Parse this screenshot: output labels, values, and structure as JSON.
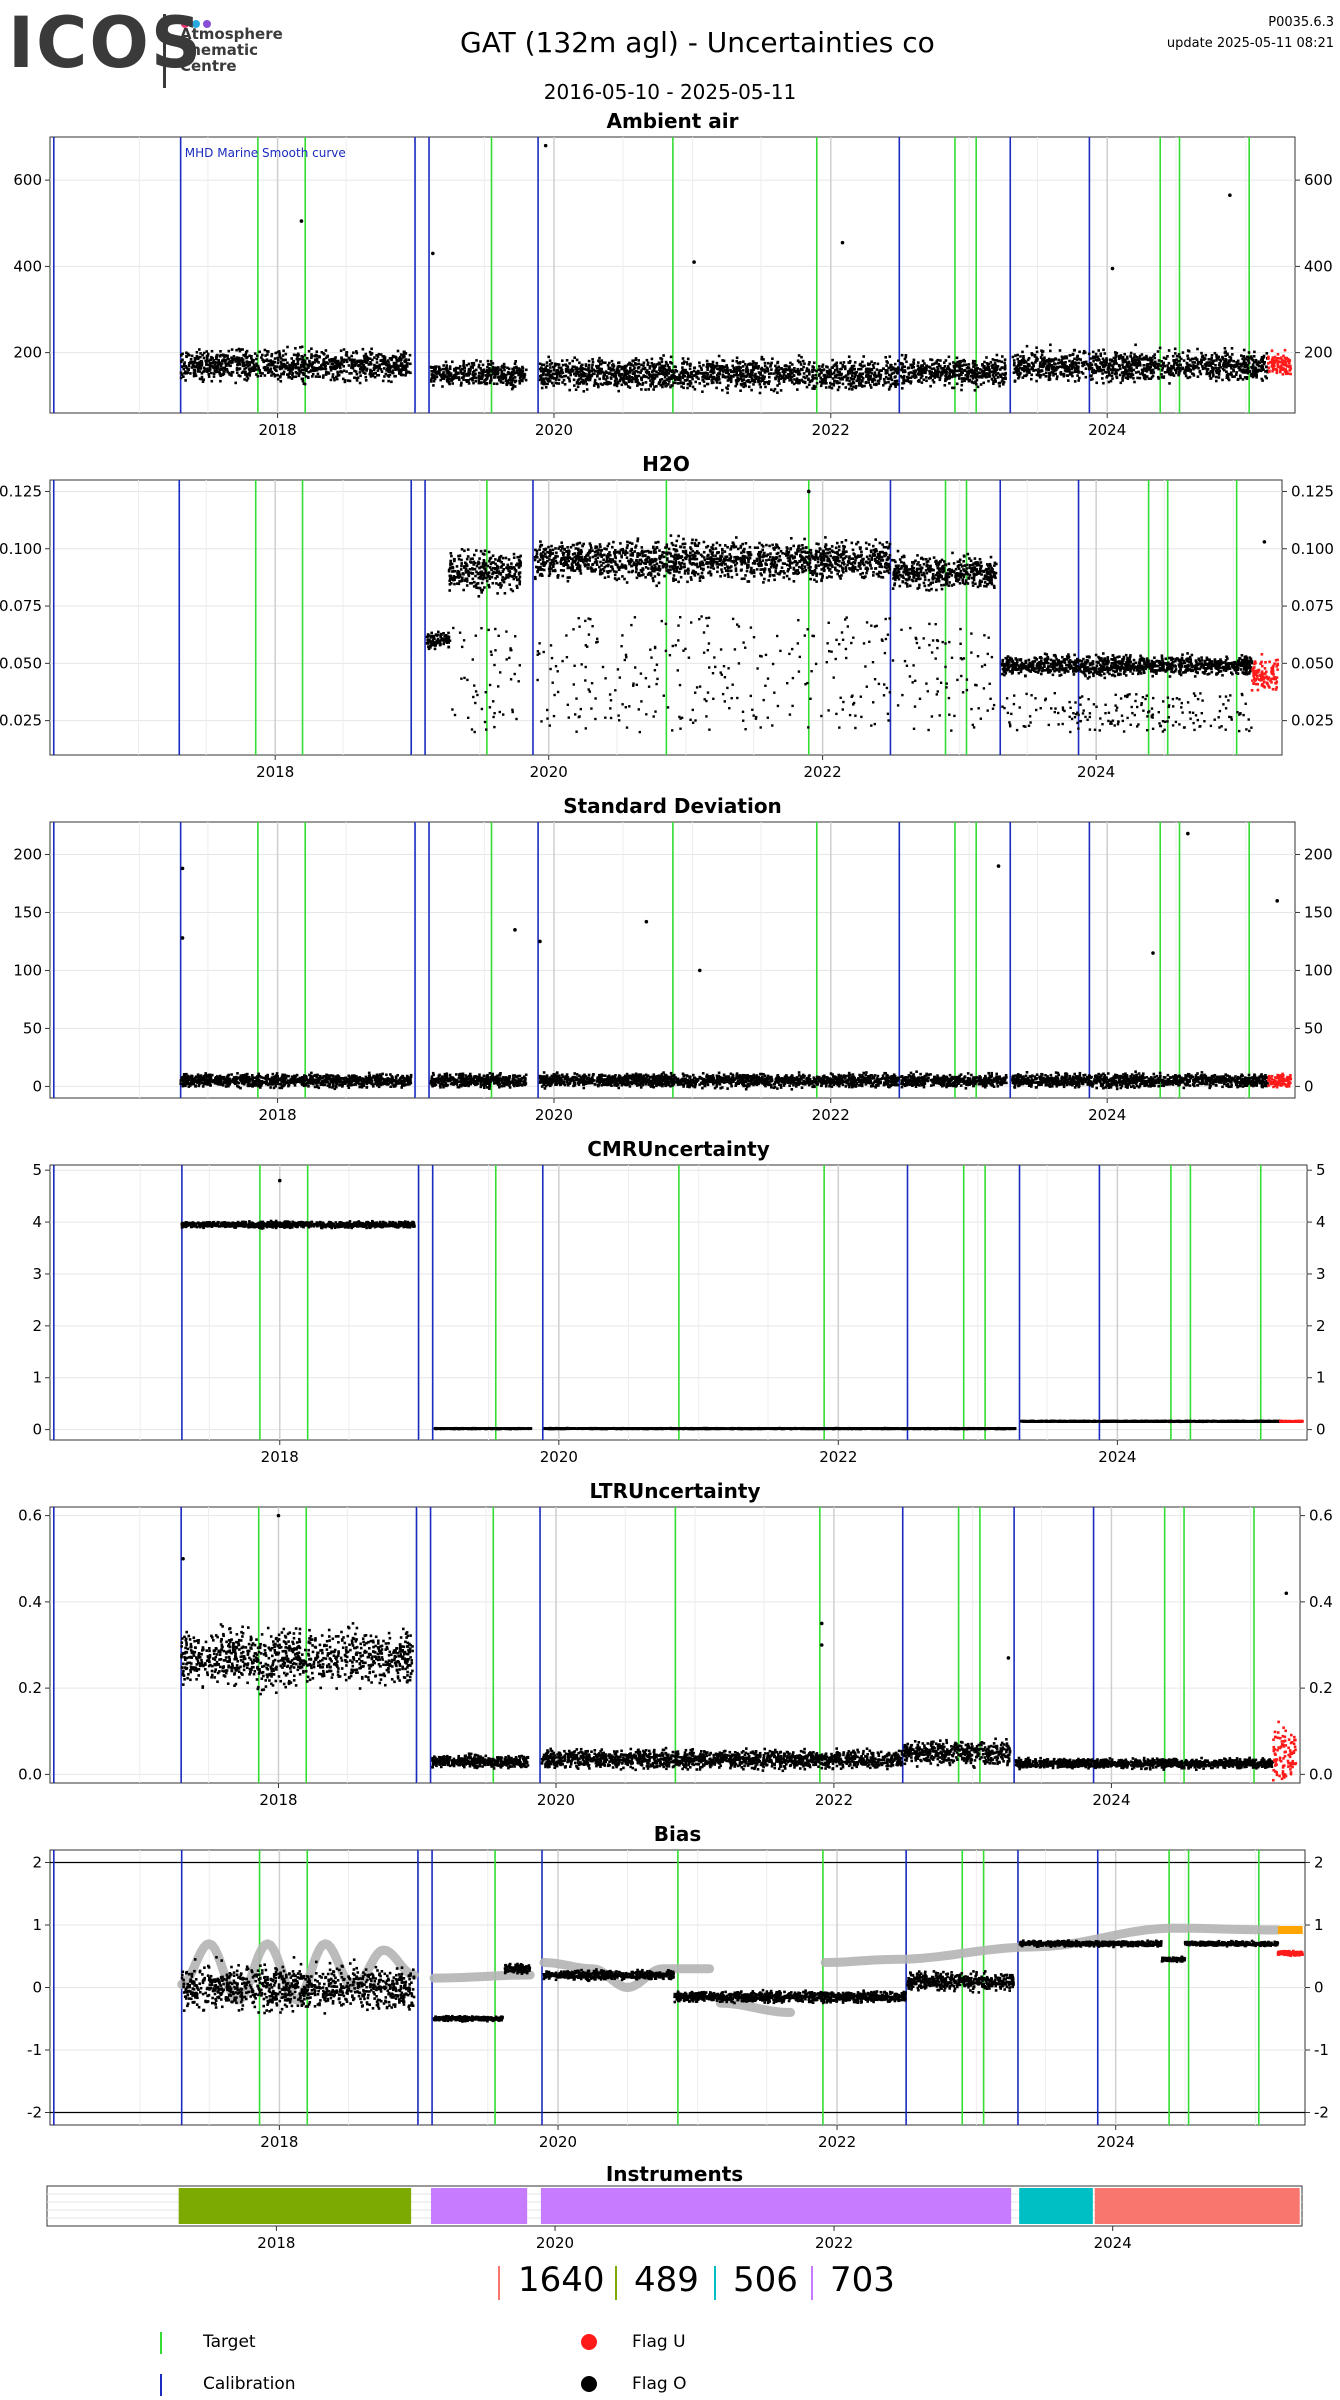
{
  "header": {
    "logo_text": "ICOS",
    "logo_sub": [
      "Atmosphere",
      "Thematic",
      "Centre"
    ],
    "title": "GAT  (132m agl) - Uncertainties co",
    "date_range": "2016-05-10 - 2025-05-11",
    "version": "P0035.6.3",
    "update": "update  2025-05-11 08:21"
  },
  "colors": {
    "target": "#33dd33",
    "calibration": "#1a2bbf",
    "flag_u": "#ff1a1a",
    "flag_o": "#000000",
    "smooth": "#b4b4b4",
    "orange": "#ffa500"
  },
  "icons": {
    "logo_dots": [
      "#e8336e",
      "#2aa9e0",
      "#8a4fd8"
    ]
  },
  "chart_data": [
    {
      "type": "scatter",
      "title": "Ambient air",
      "annotation": "MHD Marine Smooth curve",
      "xlim": [
        "2016-05-10",
        "2025-05-11"
      ],
      "xticks": [
        "2018",
        "2020",
        "2022",
        "2024"
      ],
      "ylim": [
        60,
        700
      ],
      "yticks": [
        200,
        400,
        600
      ],
      "segments": [
        {
          "start": "2017-04-20",
          "end": "2018-12-20",
          "mean": 170,
          "spread": 50
        },
        {
          "start": "2019-02-10",
          "end": "2019-10-20",
          "mean": 150,
          "spread": 40
        },
        {
          "start": "2019-11-25",
          "end": "2022-06-30",
          "mean": 150,
          "spread": 50
        },
        {
          "start": "2022-07-05",
          "end": "2023-04-10",
          "mean": 155,
          "spread": 45
        },
        {
          "start": "2023-04-25",
          "end": "2025-02-28",
          "mean": 170,
          "spread": 50
        },
        {
          "start": "2025-03-01",
          "end": "2025-04-30",
          "mean": 170,
          "spread": 40,
          "flag": "U"
        }
      ],
      "outliers": [
        [
          "2019-12-10",
          680
        ],
        [
          "2024-11-20",
          565
        ],
        [
          "2018-03-05",
          505
        ],
        [
          "2019-02-15",
          430
        ],
        [
          "2022-02-01",
          455
        ],
        [
          "2021-01-05",
          410
        ],
        [
          "2024-01-15",
          395
        ]
      ],
      "right_axis": true
    },
    {
      "type": "scatter",
      "title": "H2O",
      "xlim": [
        "2016-05-10",
        "2025-05-11"
      ],
      "xticks": [
        "2018",
        "2020",
        "2022",
        "2024"
      ],
      "ylim": [
        0.01,
        0.13
      ],
      "yticks": [
        "0.025",
        "0.050",
        "0.075",
        "0.100",
        "0.125"
      ],
      "segments": [
        {
          "start": "2019-02-10",
          "end": "2019-04-10",
          "mean": 0.06,
          "spread": 0.005
        },
        {
          "start": "2019-04-10",
          "end": "2019-10-20",
          "mean": 0.09,
          "spread": 0.012,
          "sparse_low": 0.02
        },
        {
          "start": "2019-11-25",
          "end": "2022-06-30",
          "mean": 0.095,
          "spread": 0.012,
          "sparse_low": 0.02
        },
        {
          "start": "2022-07-05",
          "end": "2023-04-10",
          "mean": 0.09,
          "spread": 0.01,
          "sparse_low": 0.02
        },
        {
          "start": "2023-04-25",
          "end": "2025-02-20",
          "mean": 0.049,
          "spread": 0.006,
          "sparse_low": 0.02
        },
        {
          "start": "2025-02-20",
          "end": "2025-04-30",
          "mean": 0.045,
          "spread": 0.01,
          "flag": "U"
        }
      ],
      "outliers": [
        [
          "2021-11-25",
          0.125
        ],
        [
          "2025-03-25",
          0.103
        ]
      ],
      "right_axis": true
    },
    {
      "type": "scatter",
      "title": "Standard Deviation",
      "xlim": [
        "2016-05-10",
        "2025-05-11"
      ],
      "xticks": [
        "2018",
        "2020",
        "2022",
        "2024"
      ],
      "ylim": [
        -10,
        228
      ],
      "yticks": [
        0,
        50,
        100,
        150,
        200
      ],
      "segments": [
        {
          "start": "2017-04-20",
          "end": "2018-12-20",
          "mean": 5,
          "spread": 8
        },
        {
          "start": "2019-02-10",
          "end": "2019-10-20",
          "mean": 5,
          "spread": 8
        },
        {
          "start": "2019-11-25",
          "end": "2022-06-30",
          "mean": 5,
          "spread": 8
        },
        {
          "start": "2022-07-05",
          "end": "2023-04-10",
          "mean": 5,
          "spread": 8
        },
        {
          "start": "2023-04-25",
          "end": "2025-02-28",
          "mean": 5,
          "spread": 8
        },
        {
          "start": "2025-03-01",
          "end": "2025-04-30",
          "mean": 5,
          "spread": 8,
          "flag": "U"
        }
      ],
      "outliers": [
        [
          "2017-04-25",
          188
        ],
        [
          "2017-04-25",
          128
        ],
        [
          "2019-11-25",
          125
        ],
        [
          "2021-01-20",
          100
        ],
        [
          "2023-03-20",
          190
        ],
        [
          "2024-08-01",
          218
        ],
        [
          "2025-03-25",
          160
        ],
        [
          "2019-09-20",
          135
        ],
        [
          "2020-09-01",
          142
        ],
        [
          "2024-05-01",
          115
        ]
      ],
      "right_axis": true
    },
    {
      "type": "scatter",
      "title": "CMRUncertainty",
      "xlim": [
        "2016-05-10",
        "2025-05-11"
      ],
      "xticks": [
        "2018",
        "2020",
        "2022",
        "2024"
      ],
      "ylim": [
        -0.2,
        5.1
      ],
      "yticks": [
        0,
        1,
        2,
        3,
        4,
        5
      ],
      "segments": [
        {
          "start": "2017-04-20",
          "end": "2018-12-20",
          "mean": 3.95,
          "spread": 0.08
        },
        {
          "start": "2019-02-10",
          "end": "2019-10-20",
          "mean": 0.02,
          "spread": 0.01
        },
        {
          "start": "2019-11-25",
          "end": "2023-04-10",
          "mean": 0.02,
          "spread": 0.01
        },
        {
          "start": "2023-04-25",
          "end": "2025-03-01",
          "mean": 0.16,
          "spread": 0.01
        },
        {
          "start": "2025-03-01",
          "end": "2025-04-30",
          "mean": 0.16,
          "spread": 0.01,
          "flag": "U"
        }
      ],
      "outliers": [
        [
          "2018-01-01",
          4.8
        ]
      ],
      "right_axis": true
    },
    {
      "type": "scatter",
      "title": "LTRUncertainty",
      "xlim": [
        "2016-05-10",
        "2025-05-11"
      ],
      "xticks": [
        "2018",
        "2020",
        "2022",
        "2024"
      ],
      "ylim": [
        -0.02,
        0.62
      ],
      "yticks": [
        "0.0",
        "0.2",
        "0.4",
        "0.6"
      ],
      "segments": [
        {
          "start": "2017-04-20",
          "end": "2018-12-20",
          "mean": 0.27,
          "spread": 0.09
        },
        {
          "start": "2019-02-10",
          "end": "2019-10-20",
          "mean": 0.03,
          "spread": 0.02
        },
        {
          "start": "2019-11-25",
          "end": "2022-06-30",
          "mean": 0.035,
          "spread": 0.03
        },
        {
          "start": "2022-07-05",
          "end": "2023-04-10",
          "mean": 0.05,
          "spread": 0.04
        },
        {
          "start": "2023-04-25",
          "end": "2025-03-01",
          "mean": 0.025,
          "spread": 0.015
        },
        {
          "start": "2025-03-01",
          "end": "2025-04-30",
          "mean": 0.05,
          "spread": 0.1,
          "flag": "U"
        }
      ],
      "outliers": [
        [
          "2021-11-30",
          0.35
        ],
        [
          "2021-11-30",
          0.3
        ],
        [
          "2018-01-01",
          0.6
        ],
        [
          "2017-04-25",
          0.5
        ],
        [
          "2023-04-05",
          0.27
        ],
        [
          "2025-04-05",
          0.42
        ]
      ],
      "right_axis": true
    },
    {
      "type": "scatter",
      "title": "Bias",
      "xlim": [
        "2016-05-10",
        "2025-05-11"
      ],
      "xticks": [
        "2018",
        "2020",
        "2022",
        "2024"
      ],
      "ylim": [
        -2.2,
        2.2
      ],
      "yticks": [
        -2,
        -1,
        0,
        1,
        2
      ],
      "hlines": [
        -2,
        2
      ],
      "segments": [
        {
          "start": "2017-04-20",
          "end": "2018-12-20",
          "mean": 0.0,
          "spread": 0.5
        },
        {
          "start": "2019-02-10",
          "end": "2019-08-10",
          "mean": -0.5,
          "spread": 0.05
        },
        {
          "start": "2019-08-15",
          "end": "2019-10-20",
          "mean": 0.3,
          "spread": 0.1
        },
        {
          "start": "2019-11-25",
          "end": "2020-10-30",
          "mean": 0.2,
          "spread": 0.1
        },
        {
          "start": "2020-11-01",
          "end": "2022-06-30",
          "mean": -0.15,
          "spread": 0.12
        },
        {
          "start": "2022-07-05",
          "end": "2023-04-10",
          "mean": 0.1,
          "spread": 0.2
        },
        {
          "start": "2023-04-25",
          "end": "2024-04-30",
          "mean": 0.7,
          "spread": 0.06
        },
        {
          "start": "2024-05-01",
          "end": "2024-07-01",
          "mean": 0.45,
          "spread": 0.05
        },
        {
          "start": "2024-07-01",
          "end": "2025-03-01",
          "mean": 0.7,
          "spread": 0.05
        },
        {
          "start": "2025-03-01",
          "end": "2025-05-05",
          "mean": 0.55,
          "spread": 0.05,
          "flag": "U"
        }
      ],
      "smooth": [
        [
          "2017-04-20",
          0.05
        ],
        [
          "2017-07-01",
          0.7
        ],
        [
          "2017-09-15",
          -0.2
        ],
        [
          "2017-12-01",
          0.7
        ],
        [
          "2018-02-15",
          -0.2
        ],
        [
          "2018-05-01",
          0.7
        ],
        [
          "2018-07-15",
          0.0
        ],
        [
          "2018-10-01",
          0.6
        ],
        [
          "2018-12-20",
          0.2
        ]
      ],
      "smooth_segments": [
        [
          [
            "2019-02-10",
            0.15
          ],
          [
            "2019-10-20",
            0.2
          ]
        ],
        [
          [
            "2019-11-25",
            0.4
          ],
          [
            "2020-04-01",
            0.3
          ],
          [
            "2020-07-01",
            0.0
          ],
          [
            "2020-10-01",
            0.3
          ],
          [
            "2021-02-01",
            0.3
          ]
        ],
        [
          [
            "2021-03-01",
            -0.25
          ],
          [
            "2021-09-01",
            -0.4
          ]
        ],
        [
          [
            "2021-12-01",
            0.4
          ],
          [
            "2022-06-01",
            0.45
          ],
          [
            "2023-06-01",
            0.65
          ],
          [
            "2024-06-01",
            0.95
          ],
          [
            "2025-03-01",
            0.92
          ]
        ]
      ],
      "orange": [
        [
          "2025-03-01",
          0.92
        ],
        [
          "2025-05-05",
          0.92
        ]
      ],
      "right_axis": true
    }
  ],
  "reference_lines": {
    "target": [
      "2017-11-10",
      "2018-03-15",
      "2019-07-20",
      "2020-11-10",
      "2021-11-25",
      "2022-11-25",
      "2023-01-20",
      "2024-05-20",
      "2024-07-10",
      "2025-01-10"
    ],
    "calibration": [
      "2016-05-20",
      "2017-04-20",
      "2018-12-30",
      "2019-02-05",
      "2019-11-20",
      "2022-07-01",
      "2023-04-20",
      "2023-11-15"
    ],
    "grey": [
      "2018-01-01",
      "2020-01-01",
      "2022-01-01",
      "2024-01-01"
    ]
  },
  "instruments": {
    "title": "Instruments",
    "bars": [
      {
        "start": "2017-04-20",
        "end": "2018-12-20",
        "color": "#7caa00"
      },
      {
        "start": "2019-02-10",
        "end": "2019-10-20",
        "color": "#c77cff"
      },
      {
        "start": "2019-11-25",
        "end": "2023-04-10",
        "color": "#c77cff"
      },
      {
        "start": "2023-05-01",
        "end": "2023-11-10",
        "color": "#00bfc4"
      },
      {
        "start": "2023-11-15",
        "end": "2025-05-05",
        "color": "#f8766d"
      }
    ],
    "xticks": [
      "2018",
      "2020",
      "2022",
      "2024"
    ]
  },
  "instrument_codes": [
    {
      "label": "1640",
      "color": "#f8766d"
    },
    {
      "label": "489",
      "color": "#7caa00"
    },
    {
      "label": "506",
      "color": "#00bfc4"
    },
    {
      "label": "703",
      "color": "#c77cff"
    }
  ],
  "legend": {
    "target": "Target",
    "calibration": "Calibration",
    "flag_u": "Flag U",
    "flag_o": "Flag O"
  }
}
